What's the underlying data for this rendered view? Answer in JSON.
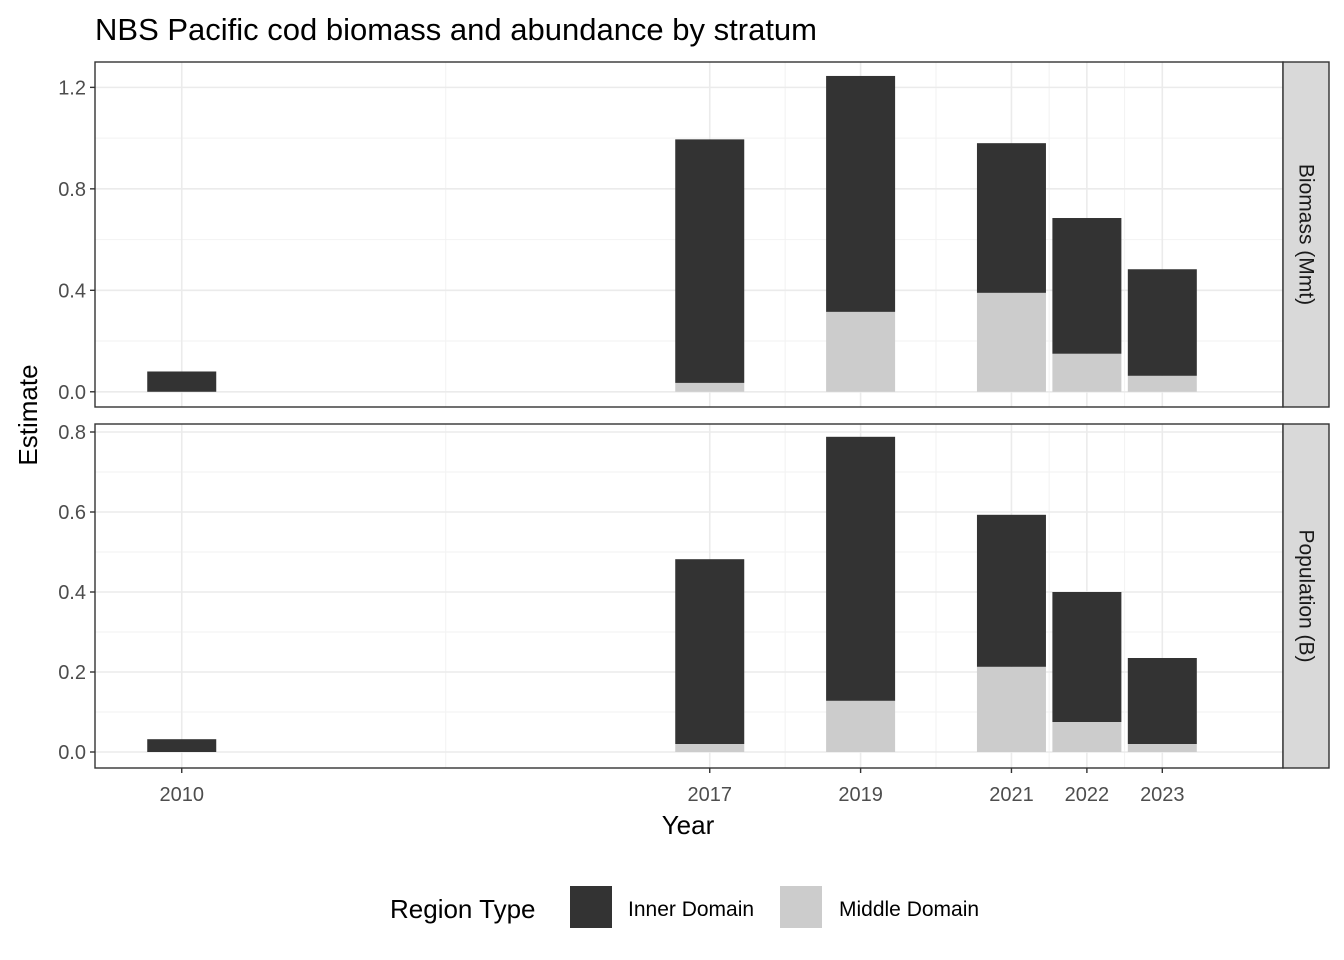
{
  "chart_data": {
    "type": "bar",
    "stacked": true,
    "title": "NBS Pacific cod biomass and abundance by stratum",
    "xlabel": "Year",
    "ylabel": "Estimate",
    "x": [
      2010,
      2017,
      2019,
      2021,
      2022,
      2023
    ],
    "x_tick_labels": [
      "2010",
      "2017",
      "2019",
      "2021",
      "2022",
      "2023"
    ],
    "facet_grid": "horizontal lines shown; vertical lines at each year",
    "legend": {
      "title": "Region Type",
      "placement": "bottom",
      "entries": [
        {
          "name": "Inner Domain",
          "color": "#333333"
        },
        {
          "name": "Middle Domain",
          "color": "#cccccc"
        }
      ]
    },
    "facets": [
      {
        "label": "Biomass (Mmt)",
        "ylim": [
          -0.06,
          1.3
        ],
        "yticks": [
          0.0,
          0.4,
          0.8,
          1.2
        ],
        "ytick_labels": [
          "0.0",
          "0.4",
          "0.8",
          "1.2"
        ],
        "series": [
          {
            "name": "Inner Domain",
            "values": [
              0.08,
              0.96,
              0.93,
              0.59,
              0.535,
              0.42
            ]
          },
          {
            "name": "Middle Domain",
            "values": [
              0.0,
              0.035,
              0.315,
              0.39,
              0.15,
              0.063
            ]
          }
        ]
      },
      {
        "label": "Population (B)",
        "ylim": [
          -0.04,
          0.82
        ],
        "yticks": [
          0.0,
          0.2,
          0.4,
          0.6,
          0.8
        ],
        "ytick_labels": [
          "0.0",
          "0.2",
          "0.4",
          "0.6",
          "0.8"
        ],
        "series": [
          {
            "name": "Inner Domain",
            "values": [
              0.032,
              0.462,
              0.66,
              0.38,
              0.325,
              0.215
            ]
          },
          {
            "name": "Middle Domain",
            "values": [
              0.0,
              0.02,
              0.128,
              0.213,
              0.075,
              0.02
            ]
          }
        ]
      }
    ]
  }
}
